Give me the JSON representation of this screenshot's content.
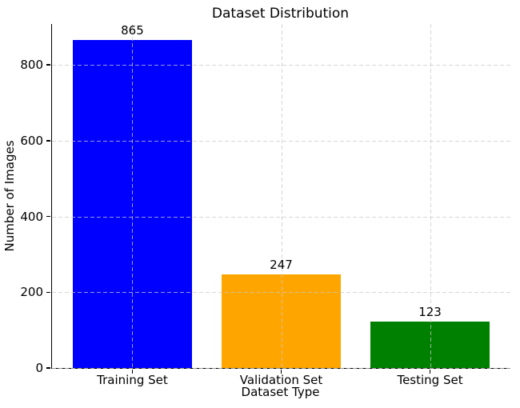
{
  "chart_data": {
    "type": "bar",
    "title": "Dataset Distribution",
    "xlabel": "Dataset Type",
    "ylabel": "Number of Images",
    "categories": [
      "Training Set",
      "Validation Set",
      "Testing Set"
    ],
    "values": [
      865,
      247,
      123
    ],
    "value_labels": [
      "865",
      "247",
      "123"
    ],
    "bar_colors": [
      "#0000ff",
      "#ffa500",
      "#008000"
    ],
    "yticks": [
      0,
      200,
      400,
      600,
      800
    ],
    "ylim": [
      0,
      908
    ],
    "grid": "dashed",
    "grid_on": true,
    "grid_above_bars": true,
    "legend": "none",
    "grid_color": "#c9c9c9",
    "background_color": "#ffffff",
    "text_color": "#000000",
    "bar_width_fraction": 0.8
  }
}
